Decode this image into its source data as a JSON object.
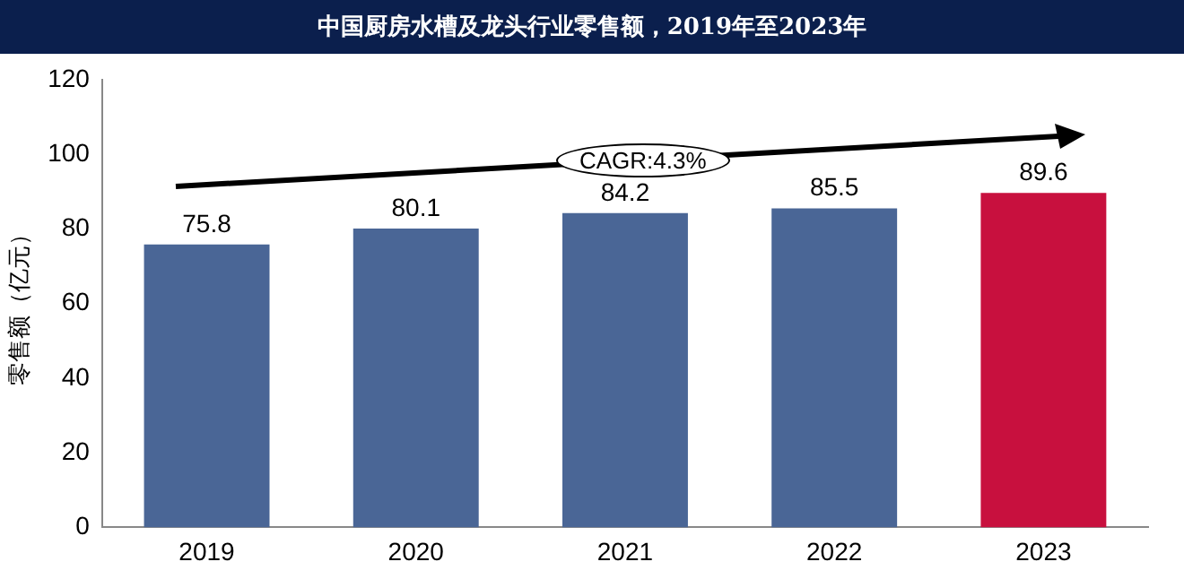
{
  "chart_data": {
    "type": "bar",
    "title": "中国厨房水槽及龙头行业零售额，2019年至2023年",
    "ylabel": "零售额（亿元）",
    "categories": [
      "2019",
      "2020",
      "2021",
      "2022",
      "2023"
    ],
    "values": [
      75.8,
      80.1,
      84.2,
      85.5,
      89.6
    ],
    "colors": [
      "#4a6696",
      "#4a6696",
      "#4a6696",
      "#4a6696",
      "#c8103e"
    ],
    "ylim": [
      0,
      120
    ],
    "yticks": [
      0,
      20,
      40,
      60,
      80,
      100,
      120
    ],
    "grid": false,
    "legend": false,
    "data_labels": true,
    "annotations": [
      "CAGR:4.3%"
    ]
  }
}
